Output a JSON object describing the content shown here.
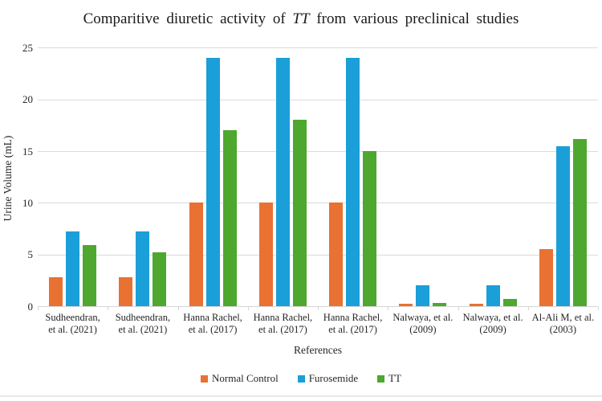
{
  "title": {
    "prefix": "Comparitive diuretic activity of ",
    "italic": "TT",
    "suffix": " from various preclinical studies"
  },
  "axes": {
    "y_label": "Urine Volume (mL)",
    "x_label": "References"
  },
  "colors": {
    "normal_control": "#E97132",
    "furosemide": "#1A9FD8",
    "tt": "#4EA72E",
    "gridline": "#dbdbdb"
  },
  "chart_data": {
    "type": "bar",
    "title": "Comparitive diuretic activity of TT from various preclinical studies",
    "xlabel": "References",
    "ylabel": "Urine Volume (mL)",
    "ylim": [
      0,
      25
    ],
    "y_ticks": [
      0,
      5,
      10,
      15,
      20,
      25
    ],
    "grid": true,
    "legend_position": "bottom",
    "categories": [
      "Sudheendran, et al. (2021)",
      "Sudheendran, et al. (2021)",
      "Hanna Rachel, et al. (2017)",
      "Hanna Rachel, et al. (2017)",
      "Hanna Rachel, et al. (2017)",
      "Nalwaya, et al. (2009)",
      "Nalwaya, et al. (2009)",
      "Al-Ali M, et al. (2003)"
    ],
    "category_labels": [
      [
        "Sudheendran,",
        "et al. (2021)"
      ],
      [
        "Sudheendran,",
        "et al. (2021)"
      ],
      [
        "Hanna Rachel,",
        "et al. (2017)"
      ],
      [
        "Hanna Rachel,",
        "et al. (2017)"
      ],
      [
        "Hanna Rachel,",
        "et al. (2017)"
      ],
      [
        "Nalwaya, et al.",
        "(2009)"
      ],
      [
        "Nalwaya, et al.",
        "(2009)"
      ],
      [
        "Al-Ali M, et al.",
        "(2003)"
      ]
    ],
    "series": [
      {
        "name": "Normal Control",
        "color": "#E97132",
        "values": [
          2.8,
          2.8,
          10,
          10,
          10,
          0.25,
          0.25,
          5.5
        ]
      },
      {
        "name": "Furosemide",
        "color": "#1A9FD8",
        "values": [
          7.2,
          7.2,
          24,
          24,
          24,
          2,
          2,
          15.5
        ]
      },
      {
        "name": "TT",
        "color": "#4EA72E",
        "values": [
          5.9,
          5.2,
          17,
          18,
          15,
          0.35,
          0.7,
          16.2
        ]
      }
    ]
  }
}
